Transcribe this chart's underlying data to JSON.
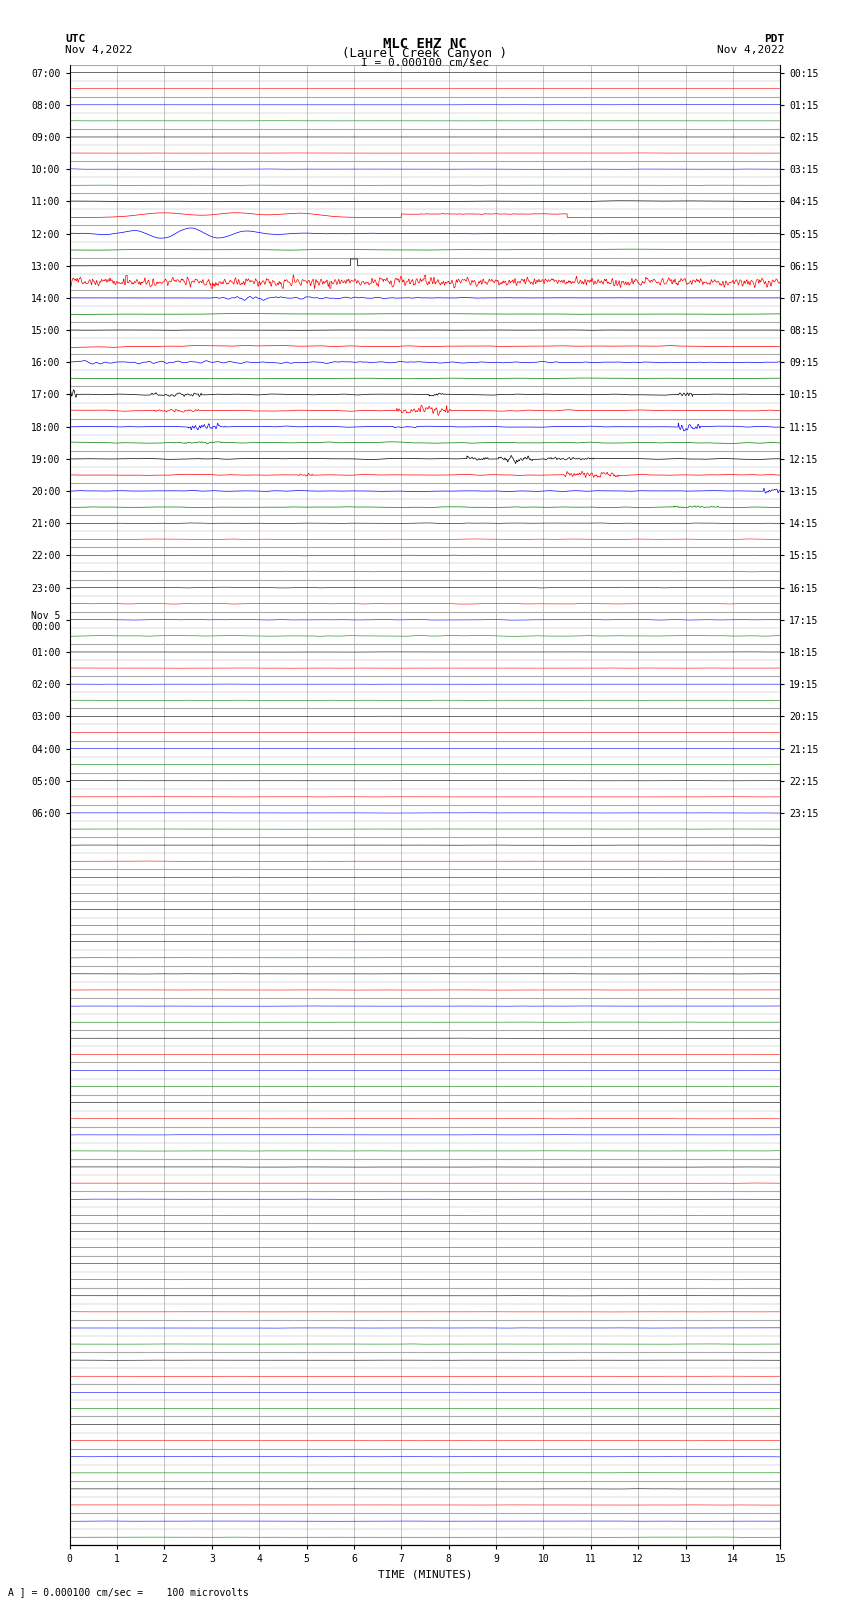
{
  "title_line1": "MLC EHZ NC",
  "title_line2": "(Laurel Creek Canyon )",
  "scale_label": "I = 0.000100 cm/sec",
  "utc_label": "UTC\nNov 4,2022",
  "pdt_label": "PDT\nNov 4,2022",
  "xlabel": "TIME (MINUTES)",
  "bottom_label": "A ] = 0.000100 cm/sec =    100 microvolts",
  "left_times_utc": [
    "07:00",
    "",
    "08:00",
    "",
    "09:00",
    "",
    "10:00",
    "",
    "11:00",
    "",
    "12:00",
    "",
    "13:00",
    "",
    "14:00",
    "",
    "15:00",
    "",
    "16:00",
    "",
    "17:00",
    "",
    "18:00",
    "",
    "19:00",
    "",
    "20:00",
    "",
    "21:00",
    "",
    "22:00",
    "",
    "23:00",
    "",
    "Nov 5\n00:00",
    "",
    "01:00",
    "",
    "02:00",
    "",
    "03:00",
    "",
    "04:00",
    "",
    "05:00",
    "",
    "06:00",
    ""
  ],
  "right_times_pdt": [
    "00:15",
    "",
    "01:15",
    "",
    "02:15",
    "",
    "03:15",
    "",
    "04:15",
    "",
    "05:15",
    "",
    "06:15",
    "",
    "07:15",
    "",
    "08:15",
    "",
    "09:15",
    "",
    "10:15",
    "",
    "11:15",
    "",
    "12:15",
    "",
    "13:15",
    "",
    "14:15",
    "",
    "15:15",
    "",
    "16:15",
    "",
    "17:15",
    "",
    "18:15",
    "",
    "19:15",
    "",
    "20:15",
    "",
    "21:15",
    "",
    "22:15",
    "",
    "23:15",
    ""
  ],
  "n_rows": 92,
  "n_minutes": 15,
  "bg_color": "#ffffff",
  "grid_color_h": "#aaaaaa",
  "grid_color_v": "#aaaaaa",
  "title_fontsize": 10,
  "tick_fontsize": 7,
  "label_fontsize": 8,
  "row_colors": [
    "black",
    "red",
    "blue",
    "green"
  ]
}
